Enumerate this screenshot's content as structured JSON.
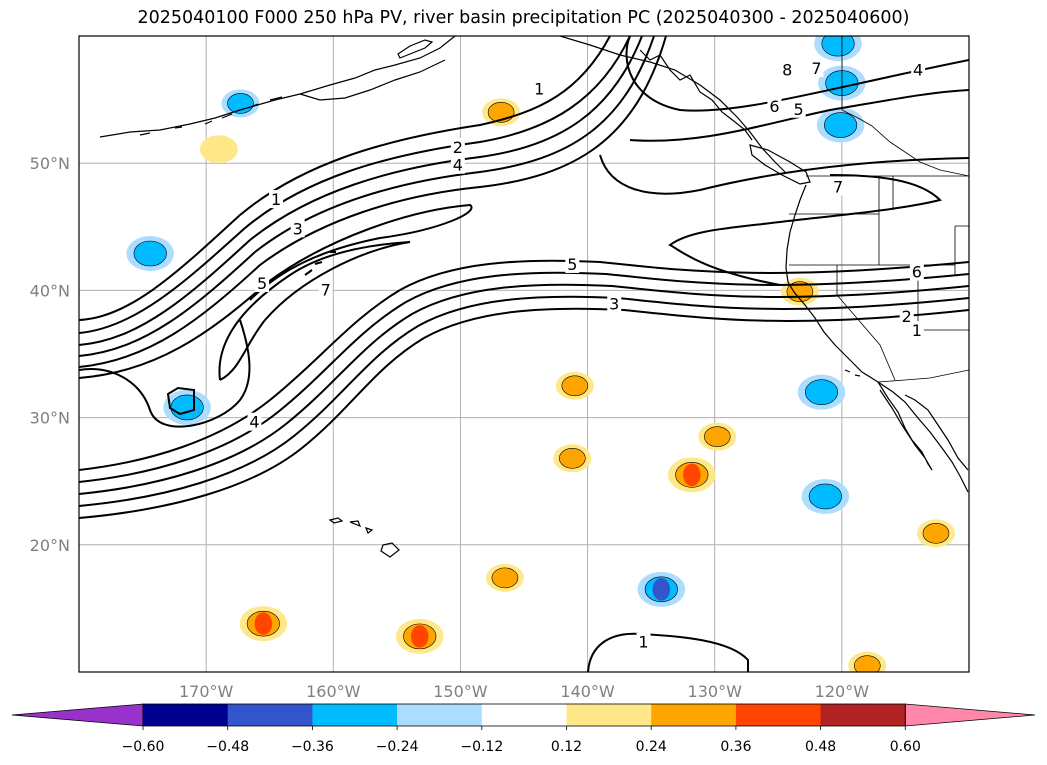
{
  "title": "2025040100 F000 250 hPa PV, river basin precipitation PC (2025040300 - 2025040600)",
  "map": {
    "extent": {
      "lon_min": -180,
      "lon_max": -110,
      "lat_min": 10,
      "lat_max": 60
    },
    "lon_ticks": [
      {
        "lon": -170,
        "label": "170°W"
      },
      {
        "lon": -160,
        "label": "160°W"
      },
      {
        "lon": -150,
        "label": "150°W"
      },
      {
        "lon": -140,
        "label": "140°W"
      },
      {
        "lon": -130,
        "label": "130°W"
      },
      {
        "lon": -120,
        "label": "120°W"
      }
    ],
    "lat_ticks": [
      {
        "lat": 50,
        "label": "50°N"
      },
      {
        "lat": 40,
        "label": "40°N"
      },
      {
        "lat": 30,
        "label": "30°N"
      },
      {
        "lat": 20,
        "label": "20°N"
      }
    ],
    "gridlines": true,
    "pv_contour_labels": [
      {
        "text": "1",
        "lon": -143.8,
        "lat": 55.8
      },
      {
        "text": "8",
        "lon": -124.3,
        "lat": 57.3
      },
      {
        "text": "7",
        "lon": -122.0,
        "lat": 57.4
      },
      {
        "text": "4",
        "lon": -114.0,
        "lat": 57.3
      },
      {
        "text": "6",
        "lon": -125.3,
        "lat": 54.4
      },
      {
        "text": "5",
        "lon": -123.4,
        "lat": 54.2
      },
      {
        "text": "2",
        "lon": -150.2,
        "lat": 51.2
      },
      {
        "text": "4",
        "lon": -150.2,
        "lat": 49.8
      },
      {
        "text": "7",
        "lon": -120.3,
        "lat": 48.1
      },
      {
        "text": "1",
        "lon": -164.5,
        "lat": 47.1
      },
      {
        "text": "3",
        "lon": -162.8,
        "lat": 44.8
      },
      {
        "text": "5",
        "lon": -141.2,
        "lat": 42.0
      },
      {
        "text": "6",
        "lon": -114.1,
        "lat": 41.4
      },
      {
        "text": "5",
        "lon": -165.6,
        "lat": 40.5
      },
      {
        "text": "7",
        "lon": -160.6,
        "lat": 40.0
      },
      {
        "text": "3",
        "lon": -137.9,
        "lat": 38.9
      },
      {
        "text": "2",
        "lon": -114.9,
        "lat": 37.9
      },
      {
        "text": "1",
        "lon": -114.1,
        "lat": 36.8
      },
      {
        "text": "4",
        "lon": -166.2,
        "lat": 29.6
      },
      {
        "text": "1",
        "lon": -135.6,
        "lat": 12.3
      }
    ],
    "precip_blobs": [
      {
        "lon": -146.8,
        "lat": 54.0,
        "level": 0.24
      },
      {
        "lon": -141.0,
        "lat": 32.5,
        "level": 0.24
      },
      {
        "lon": -131.8,
        "lat": 25.5,
        "level": 0.36
      },
      {
        "lon": -129.8,
        "lat": 28.5,
        "level": 0.24
      },
      {
        "lon": -141.2,
        "lat": 26.8,
        "level": 0.24
      },
      {
        "lon": -146.5,
        "lat": 17.4,
        "level": 0.24
      },
      {
        "lon": -165.5,
        "lat": 13.8,
        "level": 0.36
      },
      {
        "lon": -153.2,
        "lat": 12.8,
        "level": 0.36
      },
      {
        "lon": -112.6,
        "lat": 20.9,
        "level": 0.24
      },
      {
        "lon": -118.0,
        "lat": 10.5,
        "level": 0.24
      },
      {
        "lon": -123.3,
        "lat": 39.9,
        "level": 0.24
      },
      {
        "lon": -169.0,
        "lat": 51.1,
        "level": 0.12
      },
      {
        "lon": -174.4,
        "lat": 42.9,
        "level": -0.36
      },
      {
        "lon": -171.5,
        "lat": 30.8,
        "level": -0.36
      },
      {
        "lon": -134.2,
        "lat": 16.5,
        "level": -0.48
      },
      {
        "lon": -121.3,
        "lat": 23.8,
        "level": -0.36
      },
      {
        "lon": -121.6,
        "lat": 32.0,
        "level": -0.36
      },
      {
        "lon": -120.0,
        "lat": 56.3,
        "level": -0.36
      },
      {
        "lon": -120.1,
        "lat": 53.0,
        "level": -0.36
      },
      {
        "lon": -120.3,
        "lat": 59.4,
        "level": -0.36
      },
      {
        "lon": -167.3,
        "lat": 54.7,
        "level": -0.24
      }
    ]
  },
  "colorbar": {
    "tick_labels": [
      "−0.60",
      "−0.48",
      "−0.36",
      "−0.24",
      "−0.12",
      "0.12",
      "0.24",
      "0.36",
      "0.48",
      "0.60"
    ],
    "low_extend_color": "#9932cc",
    "high_extend_color": "#ff88aa",
    "colors": [
      "#000090",
      "#3355cc",
      "#00bbff",
      "#aaddff",
      "#ffffff",
      "#ffe88a",
      "#ffa500",
      "#ff4500",
      "#b22222"
    ]
  }
}
